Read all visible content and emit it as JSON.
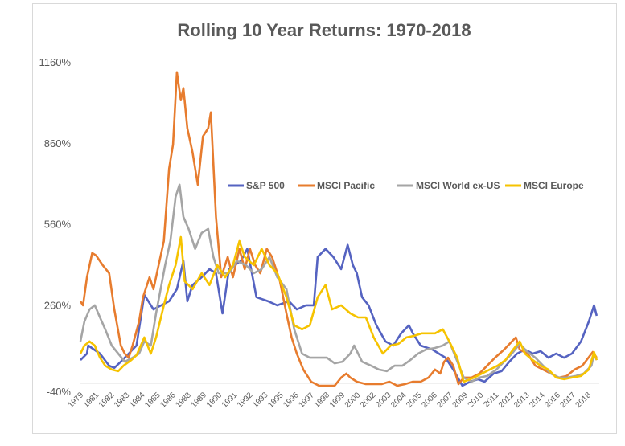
{
  "chart_data": {
    "type": "line",
    "title": "Rolling 10 Year Returns: 1970-2018",
    "xlabel": "",
    "ylabel": "",
    "ylim": [
      -40,
      1160
    ],
    "xlim": [
      1979.0,
      2018.8
    ],
    "y_ticks": [
      "-40%",
      "260%",
      "560%",
      "860%",
      "1160%"
    ],
    "y_tick_values": [
      -40,
      260,
      560,
      860,
      1160
    ],
    "x_tick_labels": [
      "1979",
      "1981",
      "1982",
      "1983",
      "1984",
      "1985",
      "1986",
      "1988",
      "1989",
      "1990",
      "1991",
      "1992",
      "1993",
      "1995",
      "1996",
      "1997",
      "1998",
      "1999",
      "2000",
      "2002",
      "2003",
      "2004",
      "2005",
      "2006",
      "2007",
      "2009",
      "2010",
      "2011",
      "2012",
      "2013",
      "2014",
      "2016",
      "2017",
      "2018"
    ],
    "grid": "baseline only",
    "legend_position": "center-right",
    "series": [
      {
        "name": "S&P 500",
        "color": "#5563c1",
        "points": [
          [
            1979.0,
            55
          ],
          [
            1979.5,
            79
          ],
          [
            1979.6,
            109
          ],
          [
            1980.5,
            79
          ],
          [
            1981.2,
            34
          ],
          [
            1981.6,
            26
          ],
          [
            1982.1,
            49
          ],
          [
            1982.7,
            79
          ],
          [
            1983.3,
            109
          ],
          [
            1983.9,
            297
          ],
          [
            1984.6,
            243
          ],
          [
            1985.2,
            258
          ],
          [
            1985.8,
            273
          ],
          [
            1986.4,
            318
          ],
          [
            1986.9,
            422
          ],
          [
            1987.2,
            273
          ],
          [
            1987.6,
            333
          ],
          [
            1988.3,
            362
          ],
          [
            1988.9,
            392
          ],
          [
            1989.4,
            377
          ],
          [
            1989.9,
            228
          ],
          [
            1990.4,
            392
          ],
          [
            1991.3,
            422
          ],
          [
            1991.8,
            467
          ],
          [
            1992.5,
            288
          ],
          [
            1993.4,
            273
          ],
          [
            1994.1,
            258
          ],
          [
            1995.0,
            273
          ],
          [
            1995.6,
            243
          ],
          [
            1996.3,
            258
          ],
          [
            1996.9,
            258
          ],
          [
            1997.2,
            437
          ],
          [
            1997.8,
            467
          ],
          [
            1998.4,
            437
          ],
          [
            1999.0,
            392
          ],
          [
            1999.5,
            482
          ],
          [
            1999.9,
            407
          ],
          [
            2000.2,
            377
          ],
          [
            2000.6,
            288
          ],
          [
            2001.1,
            258
          ],
          [
            2001.7,
            184
          ],
          [
            2002.4,
            124
          ],
          [
            2003.0,
            109
          ],
          [
            2003.6,
            154
          ],
          [
            2004.2,
            184
          ],
          [
            2004.5,
            154
          ],
          [
            2005.1,
            109
          ],
          [
            2006.0,
            94
          ],
          [
            2007.0,
            64
          ],
          [
            2007.6,
            20
          ],
          [
            2008.3,
            -40
          ],
          [
            2008.9,
            -25
          ],
          [
            2009.5,
            -16
          ],
          [
            2010.0,
            -25
          ],
          [
            2010.7,
            5
          ],
          [
            2011.3,
            14
          ],
          [
            2011.9,
            49
          ],
          [
            2012.5,
            79
          ],
          [
            2013.1,
            94
          ],
          [
            2013.7,
            79
          ],
          [
            2014.3,
            88
          ],
          [
            2014.9,
            64
          ],
          [
            2015.5,
            79
          ],
          [
            2016.1,
            64
          ],
          [
            2016.7,
            79
          ],
          [
            2017.4,
            124
          ],
          [
            2018.0,
            198
          ],
          [
            2018.4,
            258
          ],
          [
            2018.6,
            219
          ]
        ]
      },
      {
        "name": "MSCI Pacific",
        "color": "#e77c2e",
        "points": [
          [
            1979.0,
            273
          ],
          [
            1979.2,
            258
          ],
          [
            1979.5,
            362
          ],
          [
            1979.9,
            452
          ],
          [
            1980.2,
            443
          ],
          [
            1980.7,
            407
          ],
          [
            1981.2,
            377
          ],
          [
            1981.6,
            243
          ],
          [
            1982.1,
            109
          ],
          [
            1982.4,
            79
          ],
          [
            1982.7,
            64
          ],
          [
            1983.0,
            109
          ],
          [
            1983.5,
            198
          ],
          [
            1983.8,
            288
          ],
          [
            1984.3,
            362
          ],
          [
            1984.6,
            318
          ],
          [
            1985.0,
            407
          ],
          [
            1985.4,
            496
          ],
          [
            1985.8,
            764
          ],
          [
            1986.1,
            854
          ],
          [
            1986.4,
            1122
          ],
          [
            1986.7,
            1018
          ],
          [
            1986.9,
            1063
          ],
          [
            1987.2,
            914
          ],
          [
            1987.6,
            824
          ],
          [
            1988.0,
            705
          ],
          [
            1988.4,
            884
          ],
          [
            1988.8,
            914
          ],
          [
            1989.0,
            973
          ],
          [
            1989.4,
            586
          ],
          [
            1989.8,
            362
          ],
          [
            1990.3,
            437
          ],
          [
            1990.7,
            362
          ],
          [
            1991.2,
            467
          ],
          [
            1991.6,
            392
          ],
          [
            1992.0,
            467
          ],
          [
            1992.4,
            407
          ],
          [
            1992.8,
            377
          ],
          [
            1993.3,
            467
          ],
          [
            1993.7,
            437
          ],
          [
            1994.3,
            347
          ],
          [
            1994.8,
            228
          ],
          [
            1995.2,
            139
          ],
          [
            1995.6,
            79
          ],
          [
            1996.1,
            20
          ],
          [
            1996.7,
            -25
          ],
          [
            1997.3,
            -40
          ],
          [
            1998.0,
            -40
          ],
          [
            1998.5,
            -40
          ],
          [
            1999.0,
            -10
          ],
          [
            1999.4,
            5
          ],
          [
            1999.7,
            -10
          ],
          [
            2000.2,
            -25
          ],
          [
            2000.9,
            -34
          ],
          [
            2001.5,
            -34
          ],
          [
            2002.1,
            -34
          ],
          [
            2002.7,
            -25
          ],
          [
            2003.3,
            -40
          ],
          [
            2003.9,
            -34
          ],
          [
            2004.5,
            -25
          ],
          [
            2005.1,
            -25
          ],
          [
            2005.7,
            -10
          ],
          [
            2006.2,
            20
          ],
          [
            2006.6,
            5
          ],
          [
            2006.9,
            49
          ],
          [
            2007.2,
            64
          ],
          [
            2007.6,
            34
          ],
          [
            2008.0,
            -34
          ],
          [
            2008.4,
            -10
          ],
          [
            2009.0,
            -10
          ],
          [
            2009.6,
            5
          ],
          [
            2010.2,
            34
          ],
          [
            2010.8,
            64
          ],
          [
            2011.5,
            94
          ],
          [
            2012.1,
            124
          ],
          [
            2012.4,
            139
          ],
          [
            2012.7,
            94
          ],
          [
            2013.3,
            79
          ],
          [
            2013.9,
            34
          ],
          [
            2014.5,
            20
          ],
          [
            2015.1,
            5
          ],
          [
            2015.7,
            -10
          ],
          [
            2016.3,
            -4
          ],
          [
            2016.9,
            20
          ],
          [
            2017.5,
            34
          ],
          [
            2018.3,
            85
          ],
          [
            2018.6,
            64
          ]
        ]
      },
      {
        "name": "MSCI World ex-US",
        "color": "#a5a5a5",
        "points": [
          [
            1979.0,
            124
          ],
          [
            1979.3,
            198
          ],
          [
            1979.7,
            243
          ],
          [
            1980.1,
            258
          ],
          [
            1980.5,
            213
          ],
          [
            1980.9,
            169
          ],
          [
            1981.4,
            109
          ],
          [
            1981.9,
            79
          ],
          [
            1982.4,
            49
          ],
          [
            1983.0,
            64
          ],
          [
            1983.5,
            79
          ],
          [
            1983.9,
            124
          ],
          [
            1984.4,
            109
          ],
          [
            1984.8,
            228
          ],
          [
            1985.5,
            407
          ],
          [
            1985.9,
            496
          ],
          [
            1986.3,
            660
          ],
          [
            1986.6,
            705
          ],
          [
            1986.9,
            586
          ],
          [
            1987.3,
            541
          ],
          [
            1987.8,
            467
          ],
          [
            1988.3,
            526
          ],
          [
            1988.8,
            541
          ],
          [
            1989.2,
            437
          ],
          [
            1989.6,
            377
          ],
          [
            1990.4,
            377
          ],
          [
            1991.0,
            422
          ],
          [
            1991.7,
            407
          ],
          [
            1992.3,
            377
          ],
          [
            1992.9,
            392
          ],
          [
            1993.5,
            437
          ],
          [
            1994.1,
            362
          ],
          [
            1994.8,
            318
          ],
          [
            1995.4,
            169
          ],
          [
            1996.0,
            79
          ],
          [
            1996.6,
            64
          ],
          [
            1997.2,
            64
          ],
          [
            1997.9,
            64
          ],
          [
            1998.5,
            43
          ],
          [
            1999.1,
            49
          ],
          [
            1999.7,
            79
          ],
          [
            2000.0,
            109
          ],
          [
            2000.6,
            49
          ],
          [
            2001.3,
            34
          ],
          [
            2001.9,
            20
          ],
          [
            2002.5,
            14
          ],
          [
            2003.1,
            34
          ],
          [
            2003.7,
            34
          ],
          [
            2004.3,
            55
          ],
          [
            2004.9,
            79
          ],
          [
            2005.5,
            94
          ],
          [
            2006.2,
            100
          ],
          [
            2006.8,
            109
          ],
          [
            2007.3,
            124
          ],
          [
            2007.8,
            64
          ],
          [
            2008.4,
            -10
          ],
          [
            2009.0,
            -25
          ],
          [
            2009.6,
            -10
          ],
          [
            2010.2,
            -4
          ],
          [
            2010.9,
            20
          ],
          [
            2011.5,
            49
          ],
          [
            2012.1,
            79
          ],
          [
            2012.7,
            115
          ],
          [
            2013.3,
            85
          ],
          [
            2013.9,
            64
          ],
          [
            2014.5,
            34
          ],
          [
            2015.1,
            5
          ],
          [
            2015.7,
            -10
          ],
          [
            2016.3,
            -10
          ],
          [
            2017.0,
            -4
          ],
          [
            2017.6,
            5
          ],
          [
            2018.2,
            34
          ],
          [
            2018.4,
            79
          ],
          [
            2018.6,
            55
          ]
        ]
      },
      {
        "name": "MSCI Europe",
        "color": "#f6c300",
        "points": [
          [
            1979.0,
            79
          ],
          [
            1979.3,
            109
          ],
          [
            1979.7,
            124
          ],
          [
            1980.1,
            109
          ],
          [
            1980.5,
            64
          ],
          [
            1980.9,
            34
          ],
          [
            1981.4,
            20
          ],
          [
            1981.9,
            14
          ],
          [
            1982.3,
            34
          ],
          [
            1982.9,
            55
          ],
          [
            1983.3,
            73
          ],
          [
            1983.9,
            139
          ],
          [
            1984.4,
            79
          ],
          [
            1984.8,
            139
          ],
          [
            1985.4,
            258
          ],
          [
            1985.8,
            333
          ],
          [
            1986.3,
            407
          ],
          [
            1986.7,
            511
          ],
          [
            1987.0,
            347
          ],
          [
            1987.6,
            318
          ],
          [
            1988.3,
            377
          ],
          [
            1988.9,
            333
          ],
          [
            1989.5,
            407
          ],
          [
            1990.1,
            362
          ],
          [
            1990.7,
            407
          ],
          [
            1991.2,
            496
          ],
          [
            1991.6,
            437
          ],
          [
            1992.3,
            407
          ],
          [
            1992.9,
            467
          ],
          [
            1993.5,
            407
          ],
          [
            1994.1,
            377
          ],
          [
            1994.8,
            288
          ],
          [
            1995.4,
            184
          ],
          [
            1996.0,
            169
          ],
          [
            1996.6,
            184
          ],
          [
            1997.2,
            288
          ],
          [
            1997.8,
            333
          ],
          [
            1998.3,
            243
          ],
          [
            1999.0,
            258
          ],
          [
            1999.7,
            228
          ],
          [
            2000.3,
            213
          ],
          [
            2000.9,
            213
          ],
          [
            2001.5,
            139
          ],
          [
            2002.2,
            79
          ],
          [
            2002.8,
            109
          ],
          [
            2003.4,
            115
          ],
          [
            2004.0,
            139
          ],
          [
            2004.6,
            145
          ],
          [
            2005.2,
            154
          ],
          [
            2006.2,
            154
          ],
          [
            2006.8,
            169
          ],
          [
            2007.3,
            124
          ],
          [
            2007.9,
            64
          ],
          [
            2008.4,
            -25
          ],
          [
            2009.2,
            -10
          ],
          [
            2009.8,
            5
          ],
          [
            2010.4,
            20
          ],
          [
            2011.0,
            34
          ],
          [
            2011.6,
            55
          ],
          [
            2012.2,
            94
          ],
          [
            2012.7,
            124
          ],
          [
            2013.1,
            79
          ],
          [
            2013.7,
            55
          ],
          [
            2014.3,
            34
          ],
          [
            2014.9,
            20
          ],
          [
            2015.5,
            -10
          ],
          [
            2016.1,
            -16
          ],
          [
            2016.7,
            -10
          ],
          [
            2017.4,
            -4
          ],
          [
            2018.0,
            20
          ],
          [
            2018.4,
            85
          ],
          [
            2018.6,
            55
          ]
        ]
      }
    ]
  }
}
